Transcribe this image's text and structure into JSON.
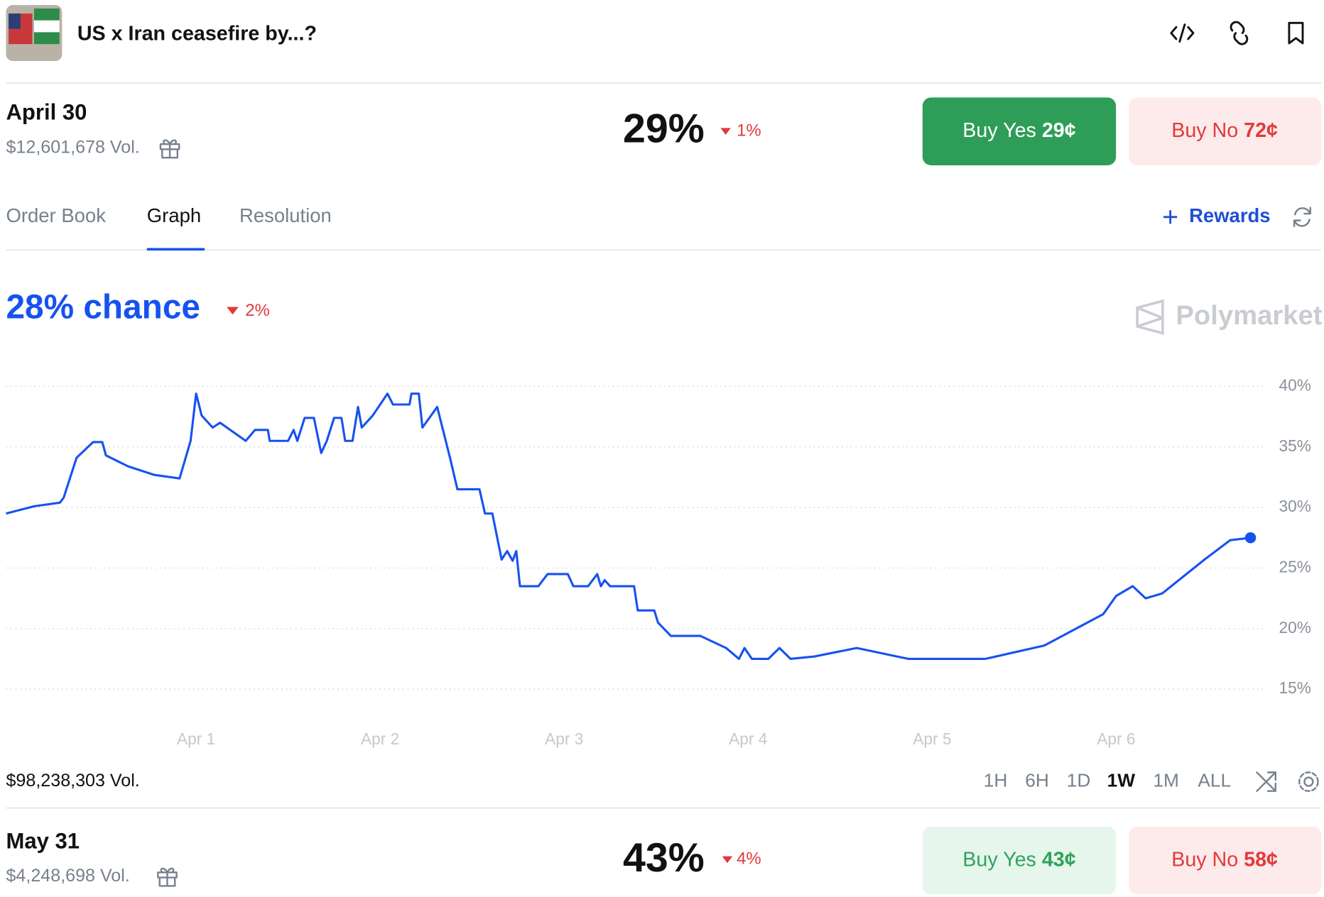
{
  "header": {
    "title": "US x Iran ceasefire by...?"
  },
  "markets": [
    {
      "date": "April 30",
      "volume": "$12,601,678 Vol.",
      "chance": "29%",
      "change": "1%",
      "buy_yes": "Buy Yes",
      "yes_price": "29¢",
      "buy_no": "Buy No",
      "no_price": "72¢"
    },
    {
      "date": "May 31",
      "volume": "$4,248,698 Vol.",
      "chance": "43%",
      "change": "4%",
      "buy_yes": "Buy Yes",
      "yes_price": "43¢",
      "buy_no": "Buy No",
      "no_price": "58¢"
    }
  ],
  "tabs": [
    "Order Book",
    "Graph",
    "Resolution"
  ],
  "rewards": "Rewards",
  "chart_data": {
    "type": "line",
    "title": "28% chance",
    "change": "2%",
    "watermark": "Polymarket",
    "color": "#1652f0",
    "x": [
      -0.033,
      0.12,
      0.26,
      0.28,
      0.35,
      0.44,
      0.49,
      0.51,
      0.63,
      0.77,
      0.91,
      0.97,
      1.0,
      1.03,
      1.09,
      1.13,
      1.27,
      1.32,
      1.39,
      1.4,
      1.5,
      1.53,
      1.55,
      1.59,
      1.64,
      1.68,
      1.71,
      1.75,
      1.79,
      1.81,
      1.85,
      1.88,
      1.9,
      1.96,
      2.04,
      2.07,
      2.16,
      2.17,
      2.21,
      2.23,
      2.31,
      2.38,
      2.42,
      2.54,
      2.57,
      2.61,
      2.66,
      2.69,
      2.72,
      2.74,
      2.76,
      2.86,
      2.91,
      3.02,
      3.05,
      3.13,
      3.18,
      3.2,
      3.22,
      3.25,
      3.38,
      3.4,
      3.49,
      3.51,
      3.58,
      3.74,
      3.88,
      3.95,
      3.98,
      4.02,
      4.11,
      4.17,
      4.23,
      4.36,
      4.59,
      4.87,
      5.29,
      5.61,
      5.93,
      6.0,
      6.09,
      6.16,
      6.25,
      6.48,
      6.62,
      6.73
    ],
    "values": [
      29.5,
      30.1,
      30.4,
      30.8,
      34.1,
      35.4,
      35.4,
      34.3,
      33.4,
      32.7,
      32.4,
      35.5,
      39.4,
      37.6,
      36.6,
      37.0,
      35.5,
      36.4,
      36.4,
      35.5,
      35.5,
      36.4,
      35.5,
      37.4,
      37.4,
      34.5,
      35.5,
      37.4,
      37.4,
      35.5,
      35.5,
      38.3,
      36.6,
      37.6,
      39.4,
      38.5,
      38.5,
      39.4,
      39.4,
      36.6,
      38.3,
      34.1,
      31.5,
      31.5,
      29.5,
      29.5,
      25.7,
      26.4,
      25.6,
      26.4,
      23.5,
      23.5,
      24.5,
      24.5,
      23.5,
      23.5,
      24.5,
      23.5,
      24.0,
      23.5,
      23.5,
      21.5,
      21.5,
      20.5,
      19.4,
      19.4,
      18.4,
      17.5,
      18.4,
      17.5,
      17.5,
      18.4,
      17.5,
      17.7,
      18.4,
      17.5,
      17.5,
      18.6,
      21.2,
      22.7,
      23.5,
      22.5,
      22.9,
      25.7,
      27.3,
      27.5
    ],
    "xlim": [
      -0.033,
      6.76
    ],
    "ylim": [
      12.4,
      42.5
    ],
    "xticks": [
      {
        "value": 1,
        "label": "Apr 1"
      },
      {
        "value": 2,
        "label": "Apr 2"
      },
      {
        "value": 3,
        "label": "Apr 3"
      },
      {
        "value": 4,
        "label": "Apr 4"
      },
      {
        "value": 5,
        "label": "Apr 5"
      },
      {
        "value": 6,
        "label": "Apr 6"
      }
    ],
    "yticks": [
      {
        "value": 15,
        "label": "15%"
      },
      {
        "value": 20,
        "label": "20%"
      },
      {
        "value": 25,
        "label": "25%"
      },
      {
        "value": 30,
        "label": "30%"
      },
      {
        "value": 35,
        "label": "35%"
      },
      {
        "value": 40,
        "label": "40%"
      }
    ],
    "grid": true,
    "volume": "$98,238,303 Vol.",
    "ranges": [
      "1H",
      "6H",
      "1D",
      "1W",
      "1M",
      "ALL"
    ]
  }
}
